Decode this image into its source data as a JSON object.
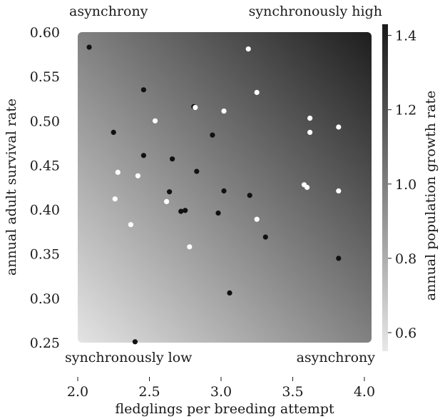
{
  "chart_data": {
    "type": "scatter",
    "title": "",
    "xlabel": "fledglings per breeding attempt",
    "ylabel": "annual adult survival rate",
    "xlim": [
      2.0,
      4.0
    ],
    "ylim": [
      0.25,
      0.6
    ],
    "xticks": [
      2.0,
      2.5,
      3.0,
      3.5,
      4.0
    ],
    "yticks": [
      0.25,
      0.3,
      0.35,
      0.4,
      0.45,
      0.5,
      0.55,
      0.6
    ],
    "grid": false,
    "plot_domain_x": [
      2.0,
      4.05
    ],
    "plot_domain_y": [
      0.25,
      0.6
    ],
    "xtick_labels": [
      "2.0",
      "2.5",
      "3.0",
      "3.5",
      "4.0"
    ],
    "ytick_labels": [
      "0.25",
      "0.30",
      "0.35",
      "0.40",
      "0.45",
      "0.50",
      "0.55",
      "0.60"
    ],
    "background": {
      "description": "gradient",
      "low_corner": "bottom-left",
      "high_corner": "top-right",
      "low_color": "#e4e4e4",
      "high_color": "#1e1e1e"
    },
    "colorbar": {
      "label": "annual population growth rate",
      "range": [
        0.55,
        1.43
      ],
      "ticks": [
        0.6,
        0.8,
        1.0,
        1.2,
        1.4
      ],
      "tick_labels": [
        "0.6",
        "0.8",
        "1.0",
        "1.2",
        "1.4"
      ],
      "low_color": "#e8e8e8",
      "high_color": "#1a1a1a"
    },
    "corner_labels": {
      "top_left": "asynchrony",
      "top_right": "synchronously high",
      "bottom_left": "synchronously low",
      "bottom_right": "asynchrony"
    },
    "series": [
      {
        "color": "#111111",
        "points": [
          [
            2.08,
            0.583
          ],
          [
            2.25,
            0.487
          ],
          [
            2.46,
            0.535
          ],
          [
            2.46,
            0.461
          ],
          [
            2.66,
            0.457
          ],
          [
            2.64,
            0.42
          ],
          [
            2.72,
            0.398
          ],
          [
            2.75,
            0.399
          ],
          [
            2.81,
            0.516
          ],
          [
            2.83,
            0.443
          ],
          [
            2.94,
            0.484
          ],
          [
            2.98,
            0.396
          ],
          [
            3.02,
            0.421
          ],
          [
            3.06,
            0.306
          ],
          [
            3.2,
            0.416
          ],
          [
            3.31,
            0.369
          ],
          [
            3.82,
            0.345
          ],
          [
            2.4,
            0.251
          ]
        ]
      },
      {
        "color": "#ffffff",
        "points": [
          [
            2.28,
            0.442
          ],
          [
            2.26,
            0.412
          ],
          [
            2.37,
            0.383
          ],
          [
            2.42,
            0.438
          ],
          [
            2.54,
            0.5
          ],
          [
            2.62,
            0.409
          ],
          [
            2.78,
            0.358
          ],
          [
            2.82,
            0.515
          ],
          [
            3.02,
            0.511
          ],
          [
            3.19,
            0.581
          ],
          [
            3.25,
            0.532
          ],
          [
            3.25,
            0.389
          ],
          [
            3.58,
            0.428
          ],
          [
            3.6,
            0.425
          ],
          [
            3.62,
            0.503
          ],
          [
            3.62,
            0.487
          ],
          [
            3.82,
            0.493
          ],
          [
            3.82,
            0.421
          ]
        ]
      }
    ]
  }
}
